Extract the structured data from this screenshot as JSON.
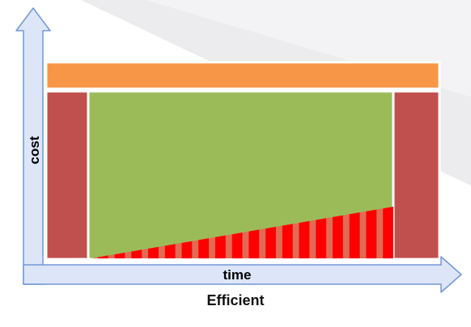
{
  "diagram": {
    "y_axis_label": "cost",
    "x_axis_label": "time",
    "caption": "Efficient",
    "bar_count": 18,
    "colors": {
      "axis_fill": "#dce6f8",
      "axis_stroke": "#7496d6",
      "top_band": "#f79646",
      "side_blocks": "#c0504d",
      "main_area": "#9bbb59",
      "rising_stripes": "#ff0000",
      "rising_stripes_gap": "#e16b54"
    }
  }
}
